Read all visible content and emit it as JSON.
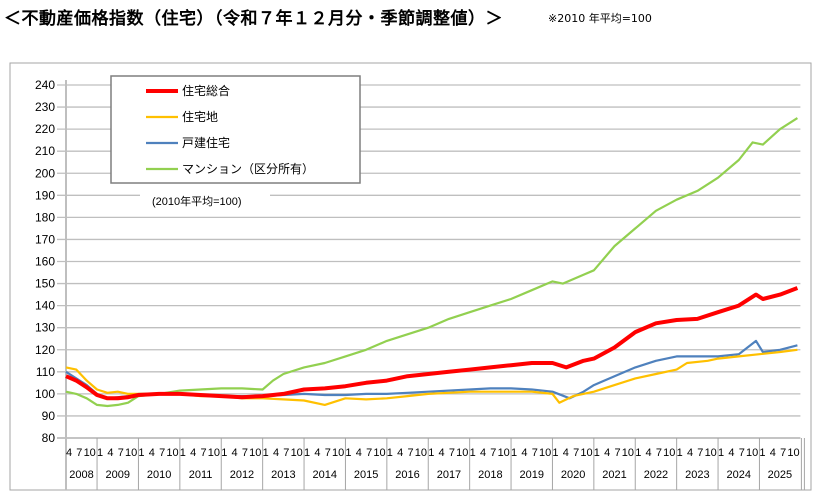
{
  "title": "＜不動産価格指数（住宅）（令和７年１２月分・季節調整値）＞",
  "note": "※2010 年平均=100",
  "chart_data": {
    "type": "line",
    "title": "",
    "annotation": "(2010年平均=100)",
    "xlabel": "",
    "ylabel": "",
    "ylim": [
      80,
      240
    ],
    "yticks": [
      80,
      90,
      100,
      110,
      120,
      130,
      140,
      150,
      160,
      170,
      180,
      190,
      200,
      210,
      220,
      230,
      240
    ],
    "xrange": [
      "2008-04",
      "2025-12"
    ],
    "month_ticks": [
      "1",
      "4",
      "7",
      "10"
    ],
    "years": [
      "2008",
      "2009",
      "2010",
      "2011",
      "2012",
      "2013",
      "2014",
      "2015",
      "2016",
      "2017",
      "2018",
      "2019",
      "2020",
      "2021",
      "2022",
      "2023",
      "2024",
      "2025"
    ],
    "grid": true,
    "legend_placement": "top-left",
    "series": [
      {
        "name": "住宅総合",
        "color": "#ff0000",
        "points": [
          [
            "2008-04",
            108
          ],
          [
            "2008-07",
            106
          ],
          [
            "2008-10",
            103
          ],
          [
            "2009-01",
            99.5
          ],
          [
            "2009-04",
            98
          ],
          [
            "2009-07",
            98
          ],
          [
            "2009-10",
            98.5
          ],
          [
            "2010-01",
            99.5
          ],
          [
            "2010-07",
            100
          ],
          [
            "2011-01",
            100
          ],
          [
            "2011-07",
            99.5
          ],
          [
            "2012-01",
            99
          ],
          [
            "2012-07",
            98.5
          ],
          [
            "2013-01",
            99
          ],
          [
            "2013-07",
            100
          ],
          [
            "2014-01",
            102
          ],
          [
            "2014-07",
            102.5
          ],
          [
            "2015-01",
            103.5
          ],
          [
            "2015-07",
            105
          ],
          [
            "2016-01",
            106
          ],
          [
            "2016-07",
            108
          ],
          [
            "2017-01",
            109
          ],
          [
            "2017-07",
            110
          ],
          [
            "2018-01",
            111
          ],
          [
            "2018-07",
            112
          ],
          [
            "2019-01",
            113
          ],
          [
            "2019-07",
            114
          ],
          [
            "2020-01",
            114
          ],
          [
            "2020-05",
            112
          ],
          [
            "2020-10",
            115
          ],
          [
            "2021-01",
            116
          ],
          [
            "2021-07",
            121
          ],
          [
            "2022-01",
            128
          ],
          [
            "2022-07",
            132
          ],
          [
            "2023-01",
            133.5
          ],
          [
            "2023-07",
            134
          ],
          [
            "2024-01",
            137
          ],
          [
            "2024-07",
            140
          ],
          [
            "2024-12",
            145
          ],
          [
            "2025-02",
            143
          ],
          [
            "2025-07",
            145
          ],
          [
            "2025-12",
            148
          ]
        ]
      },
      {
        "name": "住宅地",
        "color": "#ffc000",
        "points": [
          [
            "2008-04",
            112
          ],
          [
            "2008-07",
            111
          ],
          [
            "2008-10",
            106
          ],
          [
            "2009-01",
            102
          ],
          [
            "2009-04",
            100.5
          ],
          [
            "2009-07",
            101
          ],
          [
            "2009-10",
            100
          ],
          [
            "2010-01",
            100
          ],
          [
            "2010-07",
            100
          ],
          [
            "2011-01",
            100
          ],
          [
            "2011-07",
            99
          ],
          [
            "2012-01",
            99
          ],
          [
            "2012-07",
            98
          ],
          [
            "2013-01",
            98
          ],
          [
            "2013-07",
            97.5
          ],
          [
            "2014-01",
            97
          ],
          [
            "2014-07",
            95
          ],
          [
            "2015-01",
            98
          ],
          [
            "2015-07",
            97.5
          ],
          [
            "2016-01",
            98
          ],
          [
            "2016-07",
            99
          ],
          [
            "2017-01",
            100
          ],
          [
            "2017-07",
            100.5
          ],
          [
            "2018-01",
            101
          ],
          [
            "2018-07",
            101
          ],
          [
            "2019-01",
            101
          ],
          [
            "2019-07",
            101
          ],
          [
            "2020-01",
            100
          ],
          [
            "2020-03",
            96
          ],
          [
            "2020-07",
            99
          ],
          [
            "2021-01",
            101
          ],
          [
            "2021-07",
            104
          ],
          [
            "2022-01",
            107
          ],
          [
            "2022-07",
            109
          ],
          [
            "2023-01",
            111
          ],
          [
            "2023-04",
            114
          ],
          [
            "2023-10",
            115
          ],
          [
            "2024-01",
            116
          ],
          [
            "2024-07",
            117
          ],
          [
            "2025-01",
            118
          ],
          [
            "2025-07",
            119
          ],
          [
            "2025-12",
            120
          ]
        ]
      },
      {
        "name": "戸建住宅",
        "color": "#4f81bd",
        "points": [
          [
            "2008-04",
            110
          ],
          [
            "2008-07",
            107
          ],
          [
            "2008-10",
            104
          ],
          [
            "2009-01",
            100
          ],
          [
            "2009-04",
            98
          ],
          [
            "2009-07",
            98.5
          ],
          [
            "2009-10",
            99
          ],
          [
            "2010-01",
            100
          ],
          [
            "2010-07",
            100
          ],
          [
            "2011-01",
            100
          ],
          [
            "2011-07",
            99.5
          ],
          [
            "2012-01",
            99
          ],
          [
            "2012-07",
            99
          ],
          [
            "2013-01",
            99
          ],
          [
            "2013-07",
            99.5
          ],
          [
            "2014-01",
            100
          ],
          [
            "2014-07",
            99.5
          ],
          [
            "2015-01",
            99.5
          ],
          [
            "2015-07",
            100
          ],
          [
            "2016-01",
            100
          ],
          [
            "2016-07",
            100.5
          ],
          [
            "2017-01",
            101
          ],
          [
            "2017-07",
            101.5
          ],
          [
            "2018-01",
            102
          ],
          [
            "2018-07",
            102.5
          ],
          [
            "2019-01",
            102.5
          ],
          [
            "2019-07",
            102
          ],
          [
            "2020-01",
            101
          ],
          [
            "2020-06",
            98
          ],
          [
            "2020-10",
            101
          ],
          [
            "2021-01",
            104
          ],
          [
            "2021-07",
            108
          ],
          [
            "2022-01",
            112
          ],
          [
            "2022-07",
            115
          ],
          [
            "2023-01",
            117
          ],
          [
            "2023-07",
            117
          ],
          [
            "2024-01",
            117
          ],
          [
            "2024-07",
            118
          ],
          [
            "2024-12",
            124
          ],
          [
            "2025-02",
            119
          ],
          [
            "2025-07",
            120
          ],
          [
            "2025-12",
            122
          ]
        ]
      },
      {
        "name": "マンション（区分所有）",
        "color": "#92d050",
        "points": [
          [
            "2008-04",
            101
          ],
          [
            "2008-07",
            100
          ],
          [
            "2008-10",
            98
          ],
          [
            "2009-01",
            95
          ],
          [
            "2009-04",
            94.5
          ],
          [
            "2009-07",
            95
          ],
          [
            "2009-10",
            96
          ],
          [
            "2010-01",
            99
          ],
          [
            "2010-07",
            100
          ],
          [
            "2011-01",
            101.5
          ],
          [
            "2011-07",
            102
          ],
          [
            "2012-01",
            102.5
          ],
          [
            "2012-07",
            102.5
          ],
          [
            "2013-01",
            102
          ],
          [
            "2013-04",
            106
          ],
          [
            "2013-07",
            109
          ],
          [
            "2014-01",
            112
          ],
          [
            "2014-07",
            114
          ],
          [
            "2015-01",
            117
          ],
          [
            "2015-07",
            120
          ],
          [
            "2016-01",
            124
          ],
          [
            "2016-07",
            127
          ],
          [
            "2017-01",
            130
          ],
          [
            "2017-07",
            134
          ],
          [
            "2018-01",
            137
          ],
          [
            "2018-07",
            140
          ],
          [
            "2019-01",
            143
          ],
          [
            "2019-07",
            147
          ],
          [
            "2020-01",
            151
          ],
          [
            "2020-04",
            150
          ],
          [
            "2020-10",
            154
          ],
          [
            "2021-01",
            156
          ],
          [
            "2021-07",
            167
          ],
          [
            "2022-01",
            175
          ],
          [
            "2022-07",
            183
          ],
          [
            "2023-01",
            188
          ],
          [
            "2023-07",
            192
          ],
          [
            "2024-01",
            198
          ],
          [
            "2024-07",
            206
          ],
          [
            "2024-11",
            214
          ],
          [
            "2025-02",
            213
          ],
          [
            "2025-07",
            220
          ],
          [
            "2025-12",
            225
          ]
        ]
      }
    ]
  }
}
